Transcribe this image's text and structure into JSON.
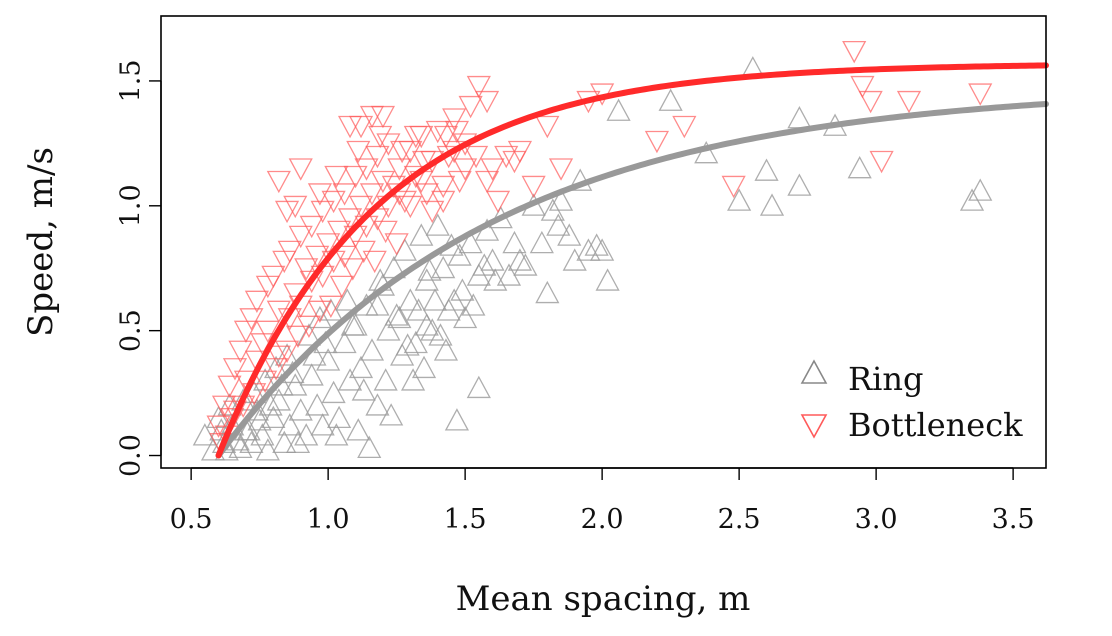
{
  "chart_data": {
    "type": "scatter",
    "title": "",
    "xlabel": "Mean spacing, m",
    "ylabel": "Speed, m/s",
    "xlim": [
      0.39,
      3.62
    ],
    "ylim": [
      -0.05,
      1.76
    ],
    "x_ticks": [
      0.5,
      1.0,
      1.5,
      2.0,
      2.5,
      3.0,
      3.5
    ],
    "x_tick_labels": [
      "0.5",
      "1.0",
      "1.5",
      "2.0",
      "2.5",
      "3.0",
      "3.5"
    ],
    "y_ticks": [
      0.0,
      0.5,
      1.0,
      1.5
    ],
    "y_tick_labels": [
      "0.0",
      "0.5",
      "1.0",
      "1.5"
    ],
    "grid": false,
    "legend": {
      "placement": "bottom-right",
      "entries": [
        "Ring",
        "Bottleneck"
      ]
    },
    "series": [
      {
        "name": "Ring",
        "color": "#9a9a9a",
        "marker": "triangle-up",
        "points": [
          [
            0.58,
            0.02
          ],
          [
            0.62,
            0.05
          ],
          [
            0.65,
            0.12
          ],
          [
            0.68,
            0.03
          ],
          [
            0.7,
            0.1
          ],
          [
            0.72,
            0.05
          ],
          [
            0.74,
            0.18
          ],
          [
            0.76,
            0.08
          ],
          [
            0.78,
            0.02
          ],
          [
            0.8,
            0.15
          ],
          [
            0.82,
            0.22
          ],
          [
            0.84,
            0.05
          ],
          [
            0.86,
            0.12
          ],
          [
            0.88,
            0.28
          ],
          [
            0.9,
            0.18
          ],
          [
            0.92,
            0.08
          ],
          [
            0.94,
            0.32
          ],
          [
            0.96,
            0.2
          ],
          [
            0.98,
            0.12
          ],
          [
            1.0,
            0.38
          ],
          [
            1.02,
            0.25
          ],
          [
            1.04,
            0.15
          ],
          [
            1.06,
            0.45
          ],
          [
            1.08,
            0.3
          ],
          [
            1.1,
            0.52
          ],
          [
            1.12,
            0.35
          ],
          [
            1.14,
            0.6
          ],
          [
            1.16,
            0.42
          ],
          [
            1.18,
            0.2
          ],
          [
            1.2,
            0.68
          ],
          [
            1.22,
            0.5
          ],
          [
            1.24,
            0.75
          ],
          [
            1.26,
            0.55
          ],
          [
            1.28,
            0.82
          ],
          [
            1.3,
            0.62
          ],
          [
            1.32,
            0.45
          ],
          [
            1.34,
            0.88
          ],
          [
            1.36,
            0.7
          ],
          [
            1.38,
            0.5
          ],
          [
            1.4,
            0.92
          ],
          [
            1.42,
            0.75
          ],
          [
            1.44,
            0.58
          ],
          [
            1.46,
            0.62
          ],
          [
            1.48,
            0.8
          ],
          [
            1.5,
            0.55
          ],
          [
            1.52,
            0.85
          ],
          [
            1.55,
            0.72
          ],
          [
            1.58,
            0.9
          ],
          [
            1.6,
            0.78
          ],
          [
            1.63,
            0.95
          ],
          [
            1.66,
            0.72
          ],
          [
            1.7,
            0.78
          ],
          [
            1.75,
            1.0
          ],
          [
            1.78,
            0.85
          ],
          [
            1.8,
            0.65
          ],
          [
            1.85,
            1.02
          ],
          [
            1.88,
            0.88
          ],
          [
            1.92,
            1.1
          ],
          [
            1.95,
            0.82
          ],
          [
            1.98,
            0.84
          ],
          [
            2.02,
            0.7
          ],
          [
            2.06,
            1.38
          ],
          [
            2.25,
            1.42
          ],
          [
            2.38,
            1.21
          ],
          [
            2.5,
            1.02
          ],
          [
            2.55,
            1.55
          ],
          [
            2.6,
            1.14
          ],
          [
            2.62,
            1.0
          ],
          [
            2.72,
            1.08
          ],
          [
            2.72,
            1.35
          ],
          [
            2.85,
            1.32
          ],
          [
            2.94,
            1.15
          ],
          [
            3.35,
            1.02
          ],
          [
            3.38,
            1.06
          ],
          [
            0.55,
            0.08
          ],
          [
            0.6,
            0.15
          ],
          [
            0.64,
            0.2
          ],
          [
            0.69,
            0.22
          ],
          [
            0.73,
            0.25
          ],
          [
            0.77,
            0.3
          ],
          [
            0.81,
            0.35
          ],
          [
            0.85,
            0.4
          ],
          [
            0.89,
            0.05
          ],
          [
            0.93,
            0.48
          ],
          [
            0.97,
            0.55
          ],
          [
            1.01,
            0.58
          ],
          [
            1.03,
            0.08
          ],
          [
            1.07,
            0.62
          ],
          [
            1.11,
            0.1
          ],
          [
            1.15,
            0.03
          ],
          [
            1.19,
            0.7
          ],
          [
            1.23,
            0.16
          ],
          [
            1.27,
            0.4
          ],
          [
            1.31,
            0.3
          ],
          [
            1.35,
            0.35
          ],
          [
            1.39,
            0.62
          ],
          [
            1.43,
            0.42
          ],
          [
            1.47,
            0.14
          ],
          [
            1.53,
            0.6
          ],
          [
            1.55,
            0.27
          ],
          [
            1.61,
            0.7
          ],
          [
            1.68,
            0.85
          ],
          [
            1.72,
            0.76
          ],
          [
            1.84,
            0.92
          ],
          [
            1.9,
            0.78
          ],
          [
            2.0,
            0.82
          ],
          [
            1.82,
            0.98
          ],
          [
            1.41,
            0.48
          ],
          [
            1.36,
            0.52
          ],
          [
            1.25,
            0.56
          ],
          [
            1.18,
            0.6
          ],
          [
            1.09,
            0.52
          ],
          [
            0.99,
            0.45
          ],
          [
            0.95,
            0.4
          ],
          [
            0.87,
            0.33
          ],
          [
            0.83,
            0.28
          ],
          [
            0.79,
            0.2
          ],
          [
            0.75,
            0.14
          ],
          [
            0.71,
            0.1
          ],
          [
            0.67,
            0.06
          ],
          [
            0.63,
            0.02
          ],
          [
            0.61,
            0.1
          ],
          [
            1.13,
            0.26
          ],
          [
            1.21,
            0.3
          ],
          [
            1.29,
            0.44
          ],
          [
            1.33,
            0.58
          ],
          [
            1.37,
            0.74
          ],
          [
            1.45,
            0.84
          ],
          [
            1.49,
            0.66
          ],
          [
            1.57,
            0.76
          ]
        ]
      },
      {
        "name": "Bottleneck",
        "color": "#ff5a5a",
        "marker": "triangle-down",
        "points": [
          [
            0.6,
            0.12
          ],
          [
            0.62,
            0.2
          ],
          [
            0.64,
            0.28
          ],
          [
            0.66,
            0.35
          ],
          [
            0.68,
            0.42
          ],
          [
            0.7,
            0.5
          ],
          [
            0.72,
            0.55
          ],
          [
            0.74,
            0.62
          ],
          [
            0.76,
            0.45
          ],
          [
            0.78,
            0.68
          ],
          [
            0.8,
            0.72
          ],
          [
            0.82,
            0.58
          ],
          [
            0.84,
            0.78
          ],
          [
            0.86,
            0.82
          ],
          [
            0.88,
            0.65
          ],
          [
            0.9,
            0.88
          ],
          [
            0.92,
            0.75
          ],
          [
            0.94,
            0.92
          ],
          [
            0.96,
            0.8
          ],
          [
            0.98,
            0.98
          ],
          [
            1.0,
            0.85
          ],
          [
            1.02,
            1.02
          ],
          [
            1.04,
            0.9
          ],
          [
            1.06,
            1.05
          ],
          [
            1.08,
            0.95
          ],
          [
            1.1,
            1.12
          ],
          [
            1.12,
            1.0
          ],
          [
            1.14,
            1.15
          ],
          [
            1.16,
            1.05
          ],
          [
            1.18,
            1.2
          ],
          [
            1.2,
            1.1
          ],
          [
            1.22,
            1.25
          ],
          [
            1.24,
            1.08
          ],
          [
            1.26,
            1.15
          ],
          [
            1.28,
            1.02
          ],
          [
            1.3,
            1.22
          ],
          [
            1.32,
            1.12
          ],
          [
            1.34,
            1.28
          ],
          [
            1.36,
            1.05
          ],
          [
            1.38,
            1.18
          ],
          [
            1.4,
            1.3
          ],
          [
            1.42,
            1.08
          ],
          [
            1.44,
            1.2
          ],
          [
            1.46,
            1.35
          ],
          [
            1.48,
            1.1
          ],
          [
            1.5,
            1.25
          ],
          [
            1.52,
            1.4
          ],
          [
            1.55,
            1.48
          ],
          [
            1.58,
            1.42
          ],
          [
            1.6,
            1.15
          ],
          [
            1.65,
            1.2
          ],
          [
            1.7,
            1.22
          ],
          [
            1.75,
            1.08
          ],
          [
            1.8,
            1.32
          ],
          [
            1.85,
            1.15
          ],
          [
            1.95,
            1.42
          ],
          [
            2.0,
            1.45
          ],
          [
            2.2,
            1.26
          ],
          [
            2.3,
            1.32
          ],
          [
            2.48,
            1.08
          ],
          [
            2.92,
            1.62
          ],
          [
            2.95,
            1.48
          ],
          [
            2.98,
            1.42
          ],
          [
            3.02,
            1.18
          ],
          [
            3.12,
            1.42
          ],
          [
            3.38,
            1.45
          ],
          [
            0.82,
            1.1
          ],
          [
            1.08,
            1.32
          ],
          [
            1.12,
            1.32
          ],
          [
            1.16,
            1.36
          ],
          [
            1.2,
            1.36
          ],
          [
            1.32,
            1.28
          ],
          [
            0.9,
            1.15
          ],
          [
            0.85,
            0.98
          ],
          [
            0.88,
            1.0
          ],
          [
            0.66,
            0.18
          ],
          [
            0.7,
            0.3
          ],
          [
            0.74,
            0.38
          ],
          [
            0.78,
            0.5
          ],
          [
            0.82,
            0.4
          ],
          [
            0.86,
            0.55
          ],
          [
            0.9,
            0.6
          ],
          [
            0.94,
            0.7
          ],
          [
            0.98,
            0.72
          ],
          [
            1.02,
            0.78
          ],
          [
            1.06,
            0.8
          ],
          [
            1.1,
            0.88
          ],
          [
            1.14,
            0.92
          ],
          [
            1.18,
            0.95
          ],
          [
            1.22,
            1.0
          ],
          [
            1.26,
            1.05
          ],
          [
            1.3,
            1.0
          ],
          [
            1.34,
            1.1
          ],
          [
            1.38,
            0.98
          ],
          [
            1.42,
            1.02
          ],
          [
            1.46,
            1.22
          ],
          [
            1.5,
            1.15
          ],
          [
            1.54,
            1.2
          ],
          [
            1.58,
            1.1
          ],
          [
            1.25,
            0.85
          ],
          [
            1.21,
            0.9
          ],
          [
            1.17,
            0.78
          ],
          [
            1.13,
            0.82
          ],
          [
            1.09,
            0.75
          ],
          [
            1.05,
            0.68
          ],
          [
            1.01,
            0.6
          ],
          [
            0.97,
            0.58
          ],
          [
            0.93,
            0.52
          ],
          [
            0.89,
            0.48
          ],
          [
            0.85,
            0.42
          ],
          [
            0.81,
            0.35
          ],
          [
            0.77,
            0.3
          ],
          [
            0.73,
            0.25
          ],
          [
            0.69,
            0.2
          ],
          [
            0.65,
            0.15
          ],
          [
            0.63,
            0.08
          ],
          [
            0.61,
            0.05
          ],
          [
            0.97,
            1.05
          ],
          [
            1.03,
            1.12
          ],
          [
            1.11,
            1.22
          ],
          [
            1.19,
            1.28
          ],
          [
            1.27,
            1.22
          ],
          [
            1.35,
            1.18
          ],
          [
            1.43,
            1.28
          ],
          [
            1.47,
            1.3
          ],
          [
            1.62,
            1.02
          ],
          [
            1.68,
            1.18
          ]
        ]
      }
    ],
    "fits": [
      {
        "name": "Ring fit",
        "color": "#999999",
        "vmax": 1.48,
        "d0": 0.6,
        "k": 1.0
      },
      {
        "name": "Bottleneck fit",
        "color": "#ff2a2a",
        "vmax": 1.57,
        "d0": 0.6,
        "k": 1.75
      }
    ]
  }
}
